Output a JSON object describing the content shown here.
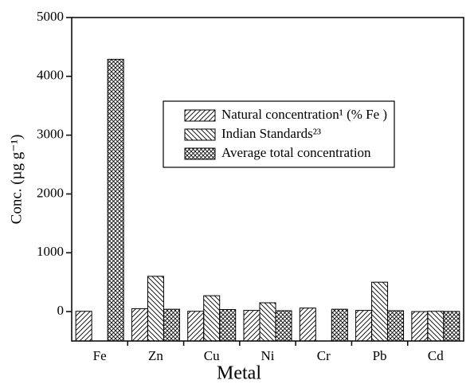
{
  "chart_data": {
    "type": "bar",
    "x_label": "Metal",
    "y_label": "Conc. (µg g⁻¹)",
    "categories": [
      "Fe",
      "Zn",
      "Cu",
      "Ni",
      "Cr",
      "Pb",
      "Cd"
    ],
    "series": [
      {
        "name": "Natural concentration¹ (% Fe )",
        "color": "#000000",
        "pattern": "hatch-right",
        "values": [
          5,
          50,
          5,
          20,
          60,
          20,
          0.3
        ]
      },
      {
        "name": "Indian Standards²³",
        "color": "#000000",
        "pattern": "hatch-left",
        "values": [
          null,
          600,
          270,
          150,
          null,
          500,
          5
        ]
      },
      {
        "name": "Average total concentration",
        "color": "#000000",
        "pattern": "cross",
        "values": [
          4290,
          40,
          35,
          15,
          40,
          15,
          2
        ]
      }
    ],
    "ylim": [
      -500,
      5000
    ],
    "yticks": [
      0,
      1000,
      2000,
      3000,
      4000,
      5000
    ]
  }
}
